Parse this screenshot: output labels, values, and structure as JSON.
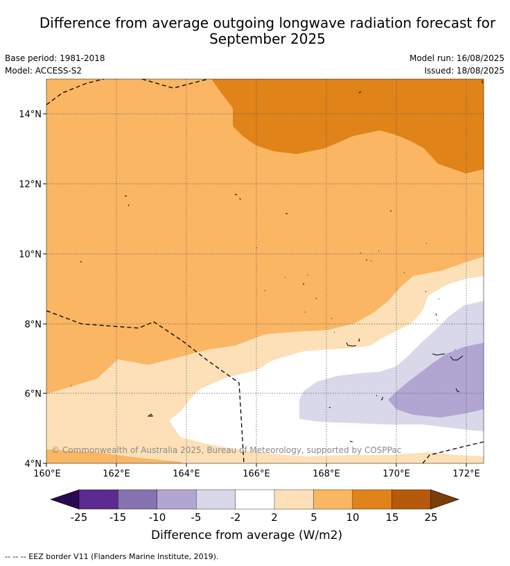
{
  "header": {
    "title_line1": "Difference from average outgoing longwave radiation forecast for",
    "title_line2": "September 2025",
    "base_period": "Base period: 1981-2018",
    "model": "Model: ACCESS-S2",
    "model_run": "Model run: 16/08/2025",
    "issued": "Issued: 18/08/2025"
  },
  "map": {
    "x_ticks": [
      "160°E",
      "162°E",
      "164°E",
      "166°E",
      "168°E",
      "170°E",
      "172°E"
    ],
    "y_ticks": [
      "14°N",
      "12°N",
      "10°N",
      "8°N",
      "6°N",
      "4°N"
    ],
    "lon_range": [
      160,
      172.5
    ],
    "lat_range": [
      4,
      15
    ],
    "copyright": "© Commonwealth of Australia 2025, Bureau of Meteorology, supported by COSPPac",
    "grid": true
  },
  "colorbar": {
    "tick_labels": [
      "-25",
      "-15",
      "-10",
      "-5",
      "-2",
      "2",
      "5",
      "10",
      "15",
      "25"
    ],
    "colors": [
      "#2a0a4f",
      "#5c2a91",
      "#8672b0",
      "#b0a6d1",
      "#d9d8eb",
      "#ffffff",
      "#fde0b7",
      "#fab663",
      "#e08318",
      "#b55a0a",
      "#7a3e0a"
    ],
    "label": "Difference from average (W/m2)"
  },
  "footnote": "--  --  -- EEZ border V11 (Flanders Marine Institute, 2019)."
}
